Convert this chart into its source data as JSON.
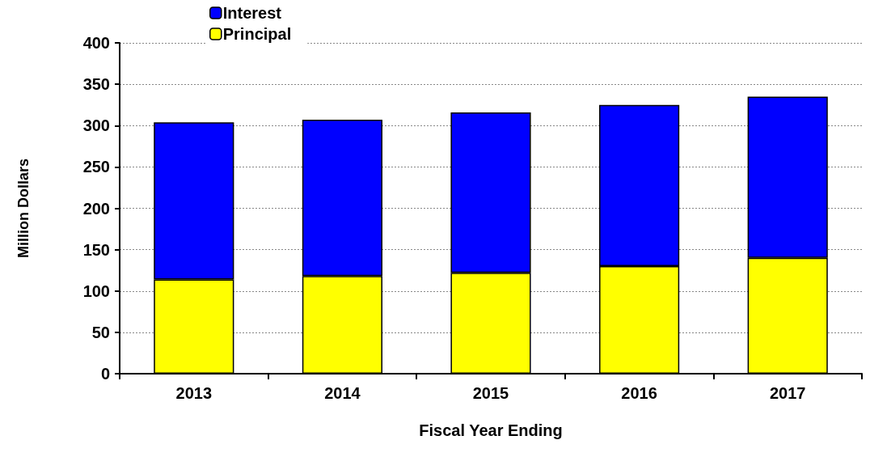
{
  "chart_data": {
    "type": "bar",
    "stacked": true,
    "xlabel": "Fiscal Year Ending",
    "ylabel": "Million Dollars",
    "categories": [
      "2013",
      "2014",
      "2015",
      "2016",
      "2017"
    ],
    "series": [
      {
        "name": "Principal",
        "color": "#ffff00",
        "values": [
          114,
          118,
          122,
          130,
          140
        ]
      },
      {
        "name": "Interest",
        "color": "#0000ff",
        "values": [
          190,
          189,
          194,
          195,
          195
        ]
      }
    ],
    "ylim": [
      0,
      400
    ],
    "yticks": [
      0,
      50,
      100,
      150,
      200,
      250,
      300,
      350,
      400
    ],
    "grid": "y",
    "legend": "top"
  }
}
